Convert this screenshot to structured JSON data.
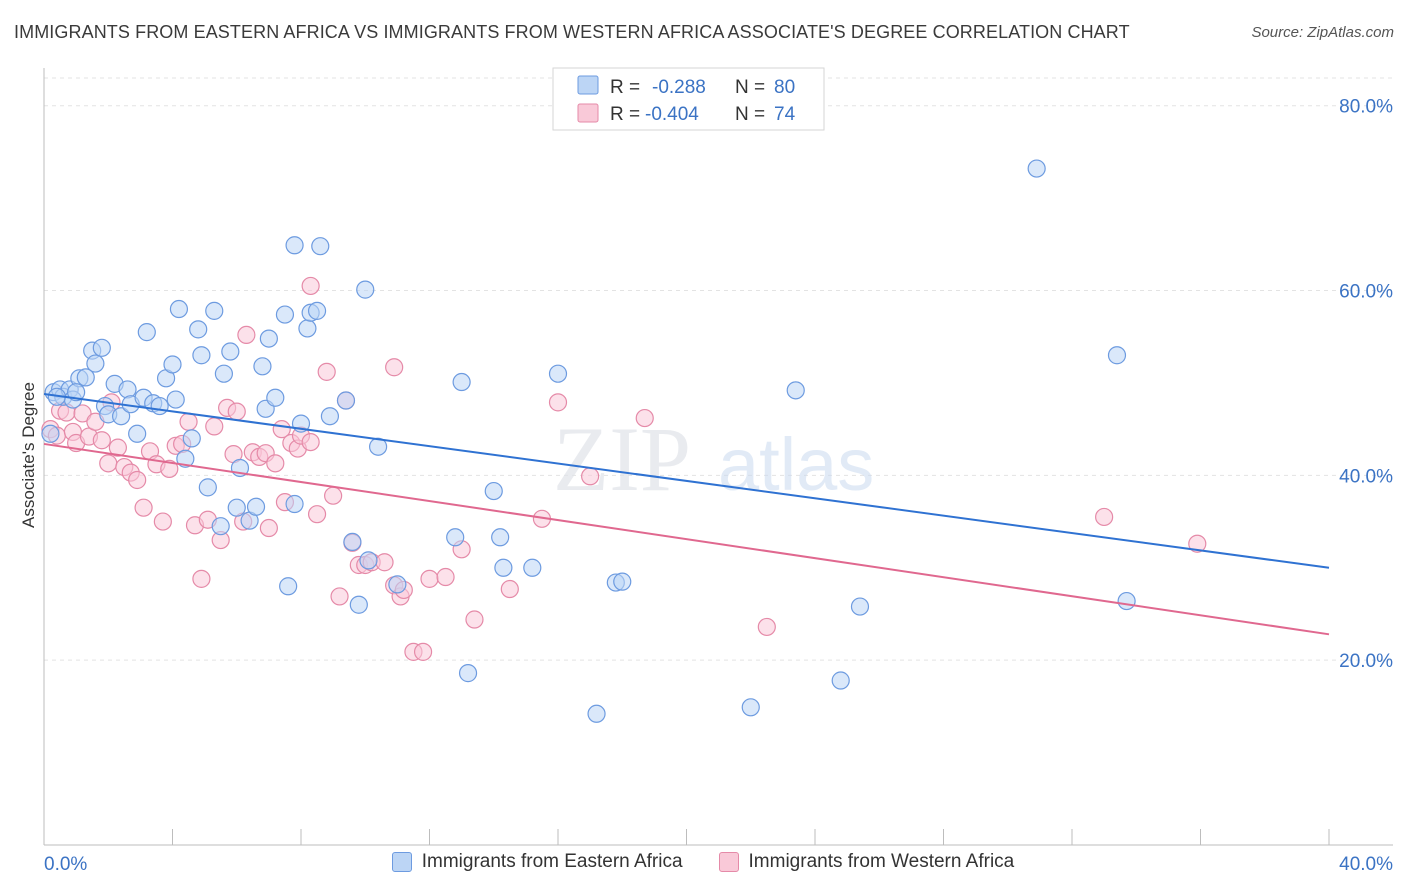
{
  "title": "IMMIGRANTS FROM EASTERN AFRICA VS IMMIGRANTS FROM WESTERN AFRICA ASSOCIATE'S DEGREE CORRELATION CHART",
  "source": "Source: ZipAtlas.com",
  "watermark": {
    "part1": "ZIP",
    "part2": "atlas"
  },
  "colors": {
    "series_a_fill": "#bcd5f5",
    "series_a_stroke": "#6d9be0",
    "series_a_line": "#2f72d2",
    "series_b_fill": "#f9c9d8",
    "series_b_stroke": "#e58aa8",
    "series_b_line": "#e0688f",
    "axis_label": "#3b73c4",
    "grid": "#e3e3e3"
  },
  "legend": {
    "r_label": "R =",
    "n_label": "N =",
    "series": [
      {
        "r": "-0.288",
        "n": "80"
      },
      {
        "r": "-0.404",
        "n": "74"
      }
    ]
  },
  "chart_data": {
    "type": "scatter",
    "title": "IMMIGRANTS FROM EASTERN AFRICA VS IMMIGRANTS FROM WESTERN AFRICA ASSOCIATE'S DEGREE CORRELATION CHART",
    "xlabel": "",
    "ylabel": "Associate's Degree",
    "xlim": [
      0,
      40
    ],
    "ylim": [
      0,
      83
    ],
    "x_tick_labels": [
      "0.0%",
      "40.0%"
    ],
    "y_ticks": [
      20,
      40,
      60,
      80
    ],
    "y_tick_labels": [
      "20.0%",
      "40.0%",
      "60.0%",
      "80.0%"
    ],
    "grid": true,
    "legend_position": "top-center",
    "series": [
      {
        "name": "Immigrants from Eastern Africa",
        "r": -0.288,
        "n": 80,
        "trend": {
          "x": [
            0,
            40
          ],
          "y": [
            48.8,
            30.0
          ]
        },
        "points": [
          [
            0.2,
            44.5
          ],
          [
            0.3,
            49.0
          ],
          [
            0.5,
            49.3
          ],
          [
            0.6,
            48.5
          ],
          [
            0.8,
            49.3
          ],
          [
            0.9,
            48.2
          ],
          [
            1.1,
            50.5
          ],
          [
            1.3,
            50.6
          ],
          [
            1.5,
            53.5
          ],
          [
            1.6,
            52.1
          ],
          [
            1.8,
            53.8
          ],
          [
            1.9,
            47.5
          ],
          [
            2.0,
            46.6
          ],
          [
            2.2,
            49.9
          ],
          [
            2.4,
            46.4
          ],
          [
            2.6,
            49.3
          ],
          [
            2.7,
            47.7
          ],
          [
            2.9,
            44.5
          ],
          [
            3.1,
            48.4
          ],
          [
            3.2,
            55.5
          ],
          [
            3.4,
            47.8
          ],
          [
            3.6,
            47.5
          ],
          [
            3.8,
            50.5
          ],
          [
            4.0,
            52.0
          ],
          [
            4.1,
            48.2
          ],
          [
            4.2,
            58.0
          ],
          [
            4.4,
            41.8
          ],
          [
            4.6,
            44.0
          ],
          [
            4.8,
            55.8
          ],
          [
            4.9,
            53.0
          ],
          [
            5.1,
            38.7
          ],
          [
            5.3,
            57.8
          ],
          [
            5.5,
            34.5
          ],
          [
            5.6,
            51.0
          ],
          [
            5.8,
            53.4
          ],
          [
            6.0,
            36.5
          ],
          [
            6.1,
            40.8
          ],
          [
            6.4,
            35.1
          ],
          [
            6.6,
            36.6
          ],
          [
            6.8,
            51.8
          ],
          [
            6.9,
            47.2
          ],
          [
            7.0,
            54.8
          ],
          [
            7.2,
            48.4
          ],
          [
            7.5,
            57.4
          ],
          [
            7.6,
            28.0
          ],
          [
            7.8,
            36.9
          ],
          [
            7.8,
            64.9
          ],
          [
            8.0,
            45.6
          ],
          [
            8.2,
            55.9
          ],
          [
            8.3,
            57.6
          ],
          [
            8.5,
            57.8
          ],
          [
            8.6,
            64.8
          ],
          [
            8.9,
            46.4
          ],
          [
            9.4,
            48.1
          ],
          [
            9.6,
            32.8
          ],
          [
            9.8,
            26.0
          ],
          [
            10.0,
            60.1
          ],
          [
            10.1,
            30.8
          ],
          [
            10.4,
            43.1
          ],
          [
            11.0,
            28.2
          ],
          [
            12.8,
            33.3
          ],
          [
            13.0,
            50.1
          ],
          [
            13.2,
            18.6
          ],
          [
            14.0,
            38.3
          ],
          [
            14.2,
            33.3
          ],
          [
            14.3,
            30.0
          ],
          [
            15.2,
            30.0
          ],
          [
            16.0,
            51.0
          ],
          [
            17.2,
            14.2
          ],
          [
            17.8,
            28.4
          ],
          [
            18.0,
            28.5
          ],
          [
            22.0,
            14.9
          ],
          [
            23.4,
            49.2
          ],
          [
            24.8,
            17.8
          ],
          [
            25.4,
            25.8
          ],
          [
            30.9,
            73.2
          ],
          [
            33.4,
            53.0
          ],
          [
            33.7,
            26.4
          ],
          [
            0.4,
            48.5
          ],
          [
            1.0,
            49.0
          ]
        ]
      },
      {
        "name": "Immigrants from Western Africa",
        "r": -0.404,
        "n": 74,
        "trend": {
          "x": [
            0,
            40
          ],
          "y": [
            43.4,
            22.8
          ]
        },
        "points": [
          [
            0.2,
            45.0
          ],
          [
            0.4,
            44.3
          ],
          [
            0.5,
            47.0
          ],
          [
            0.7,
            46.8
          ],
          [
            0.9,
            44.7
          ],
          [
            1.0,
            43.5
          ],
          [
            1.2,
            46.7
          ],
          [
            1.4,
            44.2
          ],
          [
            1.6,
            45.8
          ],
          [
            1.8,
            43.8
          ],
          [
            2.0,
            41.3
          ],
          [
            2.1,
            47.9
          ],
          [
            2.3,
            43.0
          ],
          [
            2.5,
            40.9
          ],
          [
            2.7,
            40.3
          ],
          [
            2.9,
            39.5
          ],
          [
            3.1,
            36.5
          ],
          [
            3.3,
            42.6
          ],
          [
            3.5,
            41.2
          ],
          [
            3.7,
            35.0
          ],
          [
            3.9,
            40.7
          ],
          [
            4.1,
            43.2
          ],
          [
            4.3,
            43.4
          ],
          [
            4.5,
            45.8
          ],
          [
            4.7,
            34.6
          ],
          [
            4.9,
            28.8
          ],
          [
            5.1,
            35.2
          ],
          [
            5.3,
            45.3
          ],
          [
            5.5,
            33.0
          ],
          [
            5.7,
            47.3
          ],
          [
            5.9,
            42.3
          ],
          [
            6.0,
            46.9
          ],
          [
            6.2,
            35.0
          ],
          [
            6.3,
            55.2
          ],
          [
            6.5,
            42.5
          ],
          [
            6.7,
            42.0
          ],
          [
            6.9,
            42.4
          ],
          [
            7.0,
            34.3
          ],
          [
            7.2,
            41.3
          ],
          [
            7.4,
            45.0
          ],
          [
            7.5,
            37.1
          ],
          [
            7.7,
            43.5
          ],
          [
            7.9,
            42.9
          ],
          [
            8.0,
            44.3
          ],
          [
            8.3,
            43.6
          ],
          [
            8.3,
            60.5
          ],
          [
            8.5,
            35.8
          ],
          [
            8.8,
            51.2
          ],
          [
            9.0,
            37.8
          ],
          [
            9.2,
            26.9
          ],
          [
            9.4,
            48.1
          ],
          [
            9.6,
            32.7
          ],
          [
            9.8,
            30.3
          ],
          [
            10.0,
            30.3
          ],
          [
            10.2,
            30.6
          ],
          [
            10.6,
            30.6
          ],
          [
            10.9,
            28.1
          ],
          [
            11.1,
            26.9
          ],
          [
            11.2,
            27.6
          ],
          [
            11.5,
            20.9
          ],
          [
            11.8,
            20.9
          ],
          [
            12.0,
            28.8
          ],
          [
            12.5,
            29.0
          ],
          [
            13.0,
            32.0
          ],
          [
            13.4,
            24.4
          ],
          [
            14.5,
            27.7
          ],
          [
            15.5,
            35.3
          ],
          [
            16.0,
            47.9
          ],
          [
            17.0,
            39.9
          ],
          [
            18.7,
            46.2
          ],
          [
            22.5,
            23.6
          ],
          [
            33.0,
            35.5
          ],
          [
            35.9,
            32.6
          ],
          [
            10.9,
            51.7
          ]
        ]
      }
    ]
  }
}
